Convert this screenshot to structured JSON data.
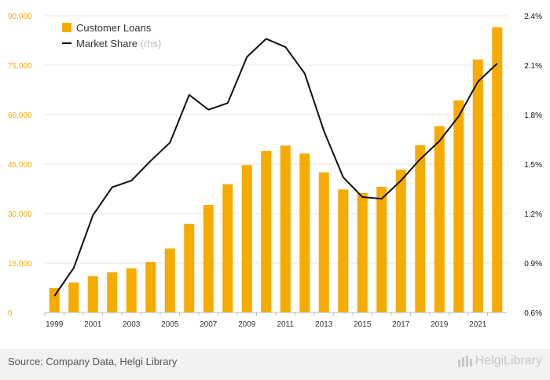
{
  "chart_data": {
    "type": "bar",
    "categories": [
      "1999",
      "2000",
      "2001",
      "2002",
      "2003",
      "2004",
      "2005",
      "2006",
      "2007",
      "2008",
      "2009",
      "2010",
      "2011",
      "2012",
      "2013",
      "2014",
      "2015",
      "2016",
      "2017",
      "2018",
      "2019",
      "2020",
      "2021",
      "2022"
    ],
    "x_tick_labels": [
      "1999",
      "2001",
      "2003",
      "2005",
      "2007",
      "2009",
      "2011",
      "2013",
      "2015",
      "2017",
      "2019",
      "2021"
    ],
    "y_left": {
      "ticks": [
        "0",
        "15,000",
        "30,000",
        "45,000",
        "60,000",
        "75,000",
        "90,000"
      ],
      "lim": [
        0,
        90000
      ]
    },
    "y_right": {
      "ticks": [
        "0.6%",
        "0.9%",
        "1.2%",
        "1.5%",
        "1.8%",
        "2.1%",
        "2.4%"
      ],
      "lim": [
        0.6,
        2.4
      ]
    },
    "series": [
      {
        "name": "Customer Loans",
        "type": "bar",
        "axis": "left",
        "color": "#f5ab00",
        "values": [
          7400,
          9100,
          11000,
          12200,
          13400,
          15300,
          19400,
          26900,
          32600,
          38900,
          44700,
          49000,
          50600,
          48200,
          42500,
          37300,
          36200,
          38100,
          43300,
          50700,
          56500,
          64300,
          76700,
          86500
        ]
      },
      {
        "name": "Market Share",
        "type": "line",
        "axis": "right",
        "color": "#111111",
        "values": [
          0.7,
          0.87,
          1.19,
          1.36,
          1.4,
          1.52,
          1.63,
          1.92,
          1.83,
          1.87,
          2.15,
          2.26,
          2.21,
          2.05,
          1.7,
          1.42,
          1.3,
          1.29,
          1.4,
          1.53,
          1.64,
          1.79,
          2.0,
          2.11
        ]
      }
    ],
    "legend": {
      "position": "top-left",
      "bar_label": "Customer Loans",
      "line_label": "Market Share",
      "line_suffix": "(rhs)"
    },
    "colors": {
      "bar": "#f5ab00",
      "left_axis_text": "#f5ab00",
      "right_axis_text": "#111111",
      "grid": "#e6e6e6"
    },
    "grid": true
  },
  "footer": {
    "source": "Source: Company Data, Helgi Library",
    "brand": "HelgiLibrary"
  }
}
